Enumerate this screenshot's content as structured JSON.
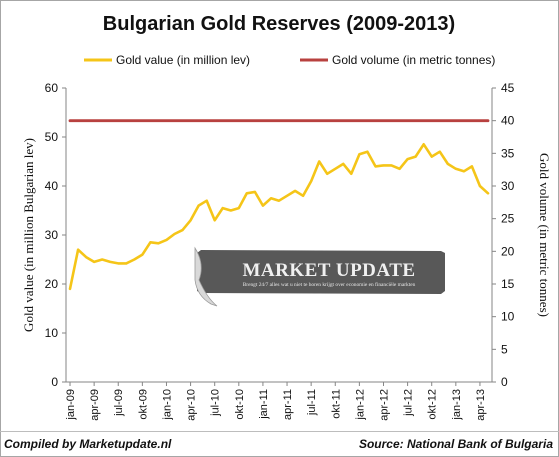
{
  "chart_data": {
    "type": "line",
    "title": "Bulgarian Gold Reserves (2009-2013)",
    "ylabel": "Gold value (in million Bulgarian lev)",
    "y2label": "Gold volume (in metric tonnes)",
    "ylim": [
      0,
      60
    ],
    "y2lim": [
      0,
      45
    ],
    "yticks": [
      0,
      10,
      20,
      30,
      40,
      50,
      60
    ],
    "y2ticks": [
      0,
      5,
      10,
      15,
      20,
      25,
      30,
      35,
      40,
      45
    ],
    "x_tick_labels": [
      "jan-09",
      "apr-09",
      "jul-09",
      "okt-09",
      "jan-10",
      "apr-10",
      "jul-10",
      "okt-10",
      "jan-11",
      "apr-11",
      "jul-11",
      "okt-11",
      "jan-12",
      "apr-12",
      "jul-12",
      "okt-12",
      "jan-13",
      "apr-13"
    ],
    "legend_position": "top",
    "grid": false,
    "series": [
      {
        "name": "Gold value (in million lev)",
        "axis": "left",
        "color": "#f5c518",
        "values": [
          19.0,
          27.0,
          25.5,
          24.5,
          25.0,
          24.5,
          24.2,
          24.2,
          25.0,
          26.0,
          28.5,
          28.3,
          29.0,
          30.2,
          31.0,
          33.0,
          36.0,
          37.0,
          33.0,
          35.5,
          35.0,
          35.5,
          38.5,
          38.8,
          36.0,
          37.5,
          37.0,
          38.0,
          39.0,
          38.0,
          41.0,
          45.0,
          42.5,
          43.5,
          44.5,
          42.5,
          46.5,
          47.0,
          44.0,
          44.2,
          44.2,
          43.5,
          45.5,
          46.0,
          48.5,
          46.0,
          47.0,
          44.5,
          43.5,
          43.0,
          44.0,
          40.0,
          38.5
        ]
      },
      {
        "name": "Gold volume (in metric tonnes)",
        "axis": "right",
        "color": "#b8413f",
        "values": [
          40,
          40,
          40,
          40,
          40,
          40,
          40,
          40,
          40,
          40,
          40,
          40,
          40,
          40,
          40,
          40,
          40,
          40,
          40,
          40,
          40,
          40,
          40,
          40,
          40,
          40,
          40,
          40,
          40,
          40,
          40,
          40,
          40,
          40,
          40,
          40,
          40,
          40,
          40,
          40,
          40,
          40,
          40,
          40,
          40,
          40,
          40,
          40,
          40,
          40,
          40,
          40,
          40
        ]
      }
    ]
  },
  "watermark": {
    "title": "MARKET UPDATE",
    "subtitle": "Brengt 24/7 alles wat u niet te horen krijgt over economie en financiële markten"
  },
  "footer": {
    "left": "Compiled by Marketupdate.nl",
    "right": "Source: National Bank of Bulgaria"
  }
}
